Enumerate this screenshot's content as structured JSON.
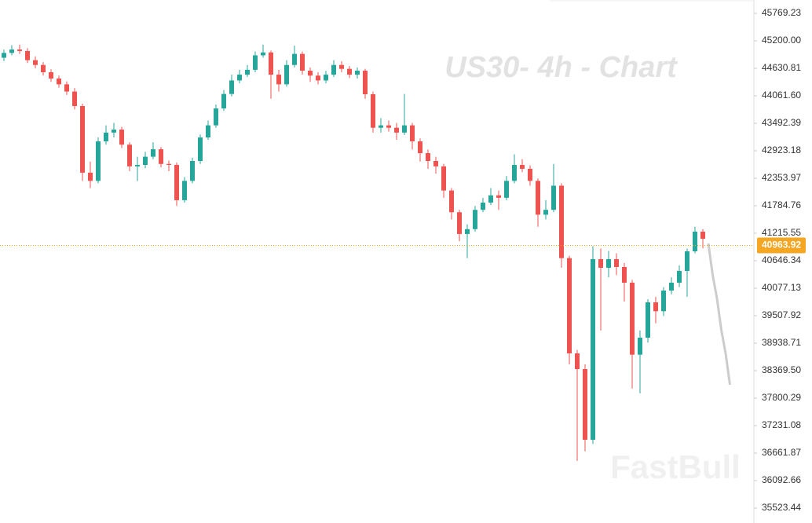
{
  "chart_data": {
    "type": "candlestick",
    "title": "US30- 4h - Chart",
    "watermark": "FastBull",
    "ylim": [
      35214,
      46046
    ],
    "yticks": [
      45769.23,
      {
        "value": 45200,
        "label": "45200.00"
      },
      44630.81,
      {
        "value": 44061.6,
        "label": "44061.60"
      },
      43492.39,
      42923.18,
      42353.97,
      41784.76,
      41215.55,
      40646.34,
      40077.13,
      39507.92,
      38938.71,
      {
        "value": 38369.5,
        "label": "38369.50"
      },
      37800.29,
      37231.08,
      36661.87,
      36092.66,
      35523.44
    ],
    "up_color": "#26a69a",
    "down_color": "#ef5350",
    "open": [
      44850,
      44950,
      45020,
      44990,
      44800,
      44700,
      44550,
      44420,
      44300,
      44150,
      43850,
      42470,
      42300,
      43118,
      43300,
      43362,
      43050,
      42600,
      42630,
      42800,
      42955,
      42650,
      42630,
      41900,
      42300,
      42712,
      43199,
      43450,
      43800,
      44100,
      44380,
      44500,
      44600,
      44900,
      44960,
      44500,
      44300,
      44700,
      44930,
      44582,
      44480,
      44380,
      44500,
      44700,
      44620,
      44500,
      44582,
      44094,
      43400,
      43450,
      43400,
      43300,
      43450,
      43118,
      42874,
      42712,
      42600,
      42100,
      41650,
      41200,
      41300,
      41700,
      41850,
      42000,
      41950,
      42300,
      42630,
      42550,
      42300,
      41600,
      41700,
      42200,
      40700,
      38727,
      38402,
      36938,
      40679,
      40500,
      40679,
      40516,
      40191,
      38700,
      39052,
      39784,
      39600,
      40028,
      40191,
      40435,
      40841,
      41248
    ],
    "high": [
      45020,
      45110,
      45120,
      45050,
      44880,
      44760,
      44610,
      44480,
      44360,
      44220,
      43900,
      42700,
      43200,
      43450,
      43500,
      43420,
      43100,
      42800,
      42900,
      43100,
      43000,
      42720,
      42680,
      42380,
      42780,
      43260,
      43550,
      43880,
      44180,
      44500,
      44600,
      44700,
      44980,
      45120,
      45000,
      44600,
      44800,
      45100,
      44980,
      44650,
      44550,
      44580,
      44800,
      44780,
      44680,
      44650,
      44620,
      44150,
      43600,
      43550,
      43500,
      44100,
      43500,
      43180,
      42950,
      42800,
      42650,
      42150,
      41700,
      41400,
      41780,
      41950,
      42150,
      42100,
      42400,
      42850,
      42750,
      42620,
      42350,
      41900,
      42650,
      42250,
      40750,
      38800,
      38500,
      40950,
      40900,
      40850,
      40800,
      40600,
      40250,
      39200,
      39850,
      39900,
      40100,
      40300,
      40550,
      40900,
      41350,
      41300
    ],
    "low": [
      44780,
      44900,
      44930,
      44740,
      44630,
      44480,
      44350,
      44230,
      44080,
      43780,
      42300,
      42150,
      42250,
      43050,
      43200,
      42980,
      42500,
      42300,
      42560,
      42750,
      42580,
      42500,
      41780,
      41850,
      42250,
      42650,
      43150,
      43400,
      43750,
      44050,
      44320,
      44450,
      44550,
      44850,
      44000,
      44150,
      44250,
      44650,
      44500,
      44350,
      44300,
      44320,
      44450,
      44550,
      44430,
      44420,
      44000,
      43300,
      43300,
      43320,
      43150,
      43250,
      42950,
      42700,
      42550,
      42450,
      41950,
      41500,
      41050,
      40700,
      41250,
      41650,
      41800,
      41700,
      41900,
      42250,
      42480,
      42200,
      41350,
      41500,
      41650,
      40500,
      38500,
      36500,
      36700,
      36850,
      39200,
      40300,
      40350,
      39800,
      38000,
      37900,
      38950,
      39350,
      39500,
      39950,
      40100,
      39900,
      40800,
      40900
    ],
    "close": [
      44950,
      45020,
      44990,
      44800,
      44700,
      44550,
      44420,
      44300,
      44150,
      43850,
      42470,
      42300,
      43118,
      43300,
      43362,
      43050,
      42600,
      42630,
      42800,
      42955,
      42650,
      42630,
      41900,
      42300,
      42712,
      43199,
      43450,
      43800,
      44100,
      44380,
      44500,
      44600,
      44900,
      44960,
      44500,
      44300,
      44700,
      44930,
      44582,
      44480,
      44380,
      44500,
      44700,
      44620,
      44500,
      44582,
      44094,
      43400,
      43450,
      43400,
      43300,
      43450,
      43118,
      42874,
      42712,
      42600,
      42100,
      41650,
      41200,
      41300,
      41700,
      41850,
      42000,
      41950,
      42300,
      42630,
      42550,
      42300,
      41600,
      41700,
      42200,
      40700,
      38727,
      38402,
      36938,
      40679,
      40500,
      40679,
      40516,
      40191,
      38700,
      39052,
      39784,
      39600,
      40028,
      40191,
      40435,
      40841,
      41248,
      41100
    ],
    "projection": {
      "color": "#cccccc",
      "values": [
        41004,
        40353,
        39866,
        39215,
        38727,
        38077
      ]
    },
    "last_price": {
      "value": 40963.92,
      "label": "40963.92",
      "color": "#f5a623"
    }
  }
}
